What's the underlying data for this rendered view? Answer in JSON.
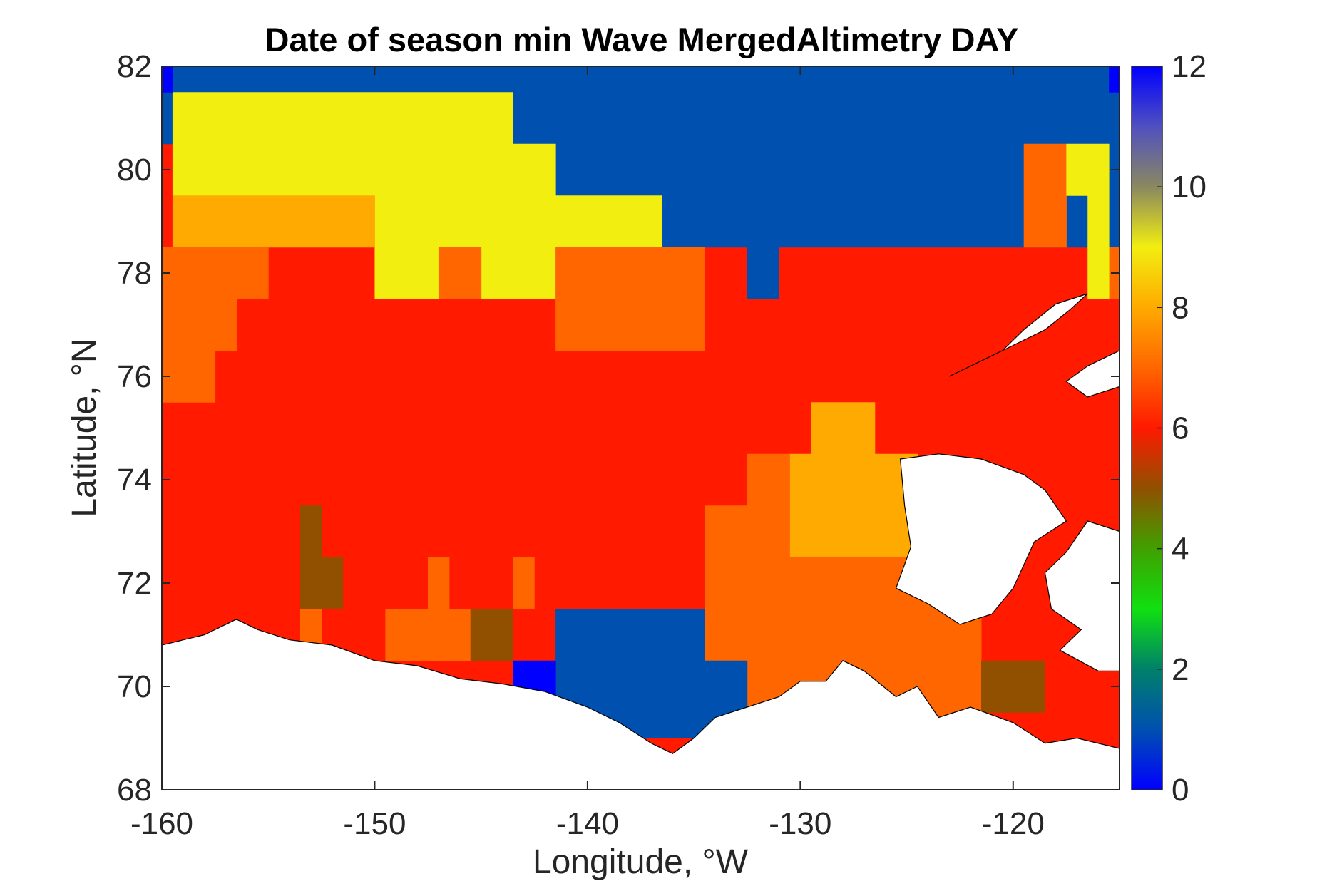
{
  "chart_data": {
    "type": "heatmap",
    "title": "Date of season min Wave MergedAltimetry DAY",
    "xlabel": "Longitude, °W",
    "ylabel": "Latitude, °N",
    "xlim": [
      -160,
      -115
    ],
    "ylim": [
      68,
      82
    ],
    "xticks": [
      -160,
      -150,
      -140,
      -130,
      -120
    ],
    "yticks": [
      68,
      70,
      72,
      74,
      76,
      78,
      80,
      82
    ],
    "colorbar": {
      "range": [
        0,
        12
      ],
      "ticks": [
        0,
        2,
        4,
        6,
        8,
        10,
        12
      ],
      "colormap": [
        {
          "value": 0,
          "color": "#0000ff"
        },
        {
          "value": 1,
          "color": "#0050b0"
        },
        {
          "value": 2,
          "color": "#00806a"
        },
        {
          "value": 3,
          "color": "#10e010"
        },
        {
          "value": 4,
          "color": "#40a000"
        },
        {
          "value": 5,
          "color": "#905000"
        },
        {
          "value": 6,
          "color": "#ff1a00"
        },
        {
          "value": 7,
          "color": "#ff6600"
        },
        {
          "value": 8,
          "color": "#ffaa00"
        },
        {
          "value": 9,
          "color": "#f2ee10"
        },
        {
          "value": 10,
          "color": "#8a8860"
        },
        {
          "value": 11,
          "color": "#5050c0"
        },
        {
          "value": 12,
          "color": "#0000ff"
        }
      ]
    },
    "grid_resolution": {
      "lon": 1,
      "lat": 1
    },
    "value_regions": [
      {
        "lon": [
          -160,
          -115
        ],
        "lat": [
          68,
          82
        ],
        "value": 6
      },
      {
        "lon": [
          -160,
          -115
        ],
        "lat": [
          80.5,
          82
        ],
        "value": 1
      },
      {
        "lon": [
          -143.5,
          -115
        ],
        "lat": [
          78.5,
          82
        ],
        "value": 1
      },
      {
        "lon": [
          -132.5,
          -131
        ],
        "lat": [
          77.5,
          78.5
        ],
        "value": 1
      },
      {
        "lon": [
          -159.5,
          -143.5
        ],
        "lat": [
          79.5,
          81.5
        ],
        "value": 9
      },
      {
        "lon": [
          -143.5,
          -141.5
        ],
        "lat": [
          79.5,
          80.5
        ],
        "value": 9
      },
      {
        "lon": [
          -150,
          -136.5
        ],
        "lat": [
          77.5,
          79.5
        ],
        "value": 9
      },
      {
        "lon": [
          -159.5,
          -150
        ],
        "lat": [
          78.5,
          79.5
        ],
        "value": 8
      },
      {
        "lon": [
          -158.5,
          -155.5
        ],
        "lat": [
          77.5,
          78.5
        ],
        "value": 8
      },
      {
        "lon": [
          -160,
          -156.5
        ],
        "lat": [
          76.5,
          78.5
        ],
        "value": 7
      },
      {
        "lon": [
          -160,
          -157.5
        ],
        "lat": [
          75.5,
          76.5
        ],
        "value": 7
      },
      {
        "lon": [
          -156.5,
          -155
        ],
        "lat": [
          77.5,
          78.5
        ],
        "value": 7
      },
      {
        "lon": [
          -147,
          -145
        ],
        "lat": [
          77.5,
          78.5
        ],
        "value": 7
      },
      {
        "lon": [
          -141.5,
          -134.5
        ],
        "lat": [
          76.5,
          78.5
        ],
        "value": 7
      },
      {
        "lon": [
          -136.5,
          -134.5
        ],
        "lat": [
          78.5,
          78.5
        ],
        "value": 7
      },
      {
        "lon": [
          -119.5,
          -117.5
        ],
        "lat": [
          78.5,
          80.5
        ],
        "value": 7
      },
      {
        "lon": [
          -115.5,
          -115
        ],
        "lat": [
          77.5,
          78.5
        ],
        "value": 7
      },
      {
        "lon": [
          -117.5,
          -115.5
        ],
        "lat": [
          79.5,
          80.5
        ],
        "value": 9
      },
      {
        "lon": [
          -116.5,
          -115.5
        ],
        "lat": [
          77.5,
          79.5
        ],
        "value": 9
      },
      {
        "lon": [
          -129.5,
          -126.5
        ],
        "lat": [
          74.5,
          75.5
        ],
        "value": 8
      },
      {
        "lon": [
          -130.5,
          -124.5
        ],
        "lat": [
          72.5,
          74.5
        ],
        "value": 8
      },
      {
        "lon": [
          -128.5,
          -125.5
        ],
        "lat": [
          71.5,
          72.5
        ],
        "value": 8
      },
      {
        "lon": [
          -132.5,
          -130.5
        ],
        "lat": [
          73.5,
          74.5
        ],
        "value": 7
      },
      {
        "lon": [
          -134.5,
          -130.5
        ],
        "lat": [
          70.5,
          73.5
        ],
        "value": 7
      },
      {
        "lon": [
          -130.5,
          -121.5
        ],
        "lat": [
          68.5,
          72.5
        ],
        "value": 7
      },
      {
        "lon": [
          -132.5,
          -121.5
        ],
        "lat": [
          68.5,
          70.5
        ],
        "value": 7
      },
      {
        "lon": [
          -149.5,
          -143.5
        ],
        "lat": [
          70.5,
          71.5
        ],
        "value": 7
      },
      {
        "lon": [
          -147.5,
          -146.5
        ],
        "lat": [
          71.5,
          72.5
        ],
        "value": 7
      },
      {
        "lon": [
          -143.5,
          -142.5
        ],
        "lat": [
          71.5,
          72.5
        ],
        "value": 7
      },
      {
        "lon": [
          -153.5,
          -152.5
        ],
        "lat": [
          70,
          71.5
        ],
        "value": 7
      },
      {
        "lon": [
          -153.5,
          -152.5
        ],
        "lat": [
          71.5,
          73.5
        ],
        "value": 5
      },
      {
        "lon": [
          -152.5,
          -151.5
        ],
        "lat": [
          71.5,
          72.5
        ],
        "value": 5
      },
      {
        "lon": [
          -145.5,
          -143.5
        ],
        "lat": [
          70.5,
          71.5
        ],
        "value": 5
      },
      {
        "lon": [
          -121.5,
          -118.5
        ],
        "lat": [
          69.5,
          70.5
        ],
        "value": 5
      },
      {
        "lon": [
          -141.5,
          -134.5
        ],
        "lat": [
          69,
          71.5
        ],
        "value": 1
      },
      {
        "lon": [
          -134.5,
          -132.5
        ],
        "lat": [
          69,
          70.5
        ],
        "value": 1
      },
      {
        "lon": [
          -143.5,
          -141.5
        ],
        "lat": [
          69.8,
          70.5
        ],
        "value": 0
      },
      {
        "lon": [
          -160,
          -159.5
        ],
        "lat": [
          81.5,
          82
        ],
        "value": 0
      },
      {
        "lon": [
          -115.5,
          -115
        ],
        "lat": [
          81.5,
          82
        ],
        "value": 0
      },
      {
        "lon": [
          -115.5,
          -115
        ],
        "lat": [
          70.3,
          70.5
        ],
        "value": 1
      }
    ],
    "land_regions": [
      {
        "name": "alaska-yukon-coast",
        "outline": [
          [
            -160,
            70.8
          ],
          [
            -158,
            71.0
          ],
          [
            -156.5,
            71.3
          ],
          [
            -155.5,
            71.1
          ],
          [
            -154,
            70.9
          ],
          [
            -152,
            70.8
          ],
          [
            -150,
            70.5
          ],
          [
            -148,
            70.4
          ],
          [
            -146,
            70.15
          ],
          [
            -144,
            70.05
          ],
          [
            -142,
            69.9
          ],
          [
            -140,
            69.6
          ],
          [
            -138.5,
            69.3
          ],
          [
            -137,
            68.9
          ],
          [
            -136,
            68.7
          ],
          [
            -135,
            69.0
          ],
          [
            -134,
            69.4
          ],
          [
            -132.5,
            69.6
          ],
          [
            -131,
            69.8
          ],
          [
            -130,
            70.1
          ],
          [
            -128.8,
            70.1
          ],
          [
            -128,
            70.5
          ],
          [
            -127,
            70.3
          ],
          [
            -125.5,
            69.8
          ],
          [
            -124.5,
            70.0
          ],
          [
            -123.5,
            69.4
          ],
          [
            -122,
            69.6
          ],
          [
            -120,
            69.3
          ],
          [
            -118.5,
            68.9
          ],
          [
            -117,
            69.0
          ],
          [
            -115,
            68.8
          ],
          [
            -115,
            68
          ],
          [
            -160,
            68
          ]
        ]
      },
      {
        "name": "banks-island",
        "outline": [
          [
            -125.3,
            74.4
          ],
          [
            -123.5,
            74.5
          ],
          [
            -121.5,
            74.4
          ],
          [
            -119.5,
            74.1
          ],
          [
            -118.5,
            73.8
          ],
          [
            -117.5,
            73.2
          ],
          [
            -119,
            72.8
          ],
          [
            -120,
            71.9
          ],
          [
            -121,
            71.4
          ],
          [
            -122.5,
            71.2
          ],
          [
            -124,
            71.6
          ],
          [
            -125.5,
            71.9
          ],
          [
            -124.8,
            72.7
          ],
          [
            -125.1,
            73.5
          ]
        ]
      },
      {
        "name": "victoria-island",
        "outline": [
          [
            -115,
            73.0
          ],
          [
            -116.5,
            73.2
          ],
          [
            -117.5,
            72.6
          ],
          [
            -118.5,
            72.2
          ],
          [
            -118.2,
            71.5
          ],
          [
            -116.8,
            71.1
          ],
          [
            -117.8,
            70.7
          ],
          [
            -116,
            70.3
          ],
          [
            -115,
            70.3
          ]
        ]
      },
      {
        "name": "prince-patrick-island",
        "outline": [
          [
            -123,
            76.0
          ],
          [
            -121.5,
            76.3
          ],
          [
            -120,
            76.6
          ],
          [
            -118.5,
            76.9
          ],
          [
            -117.3,
            77.3
          ],
          [
            -116.5,
            77.6
          ],
          [
            -118,
            77.4
          ],
          [
            -119.5,
            76.9
          ],
          [
            -120.5,
            76.5
          ],
          [
            -122,
            76.2
          ]
        ]
      },
      {
        "name": "melville-island",
        "outline": [
          [
            -115,
            76.5
          ],
          [
            -116.5,
            76.2
          ],
          [
            -117.5,
            75.9
          ],
          [
            -116.5,
            75.6
          ],
          [
            -115,
            75.8
          ]
        ]
      }
    ]
  }
}
